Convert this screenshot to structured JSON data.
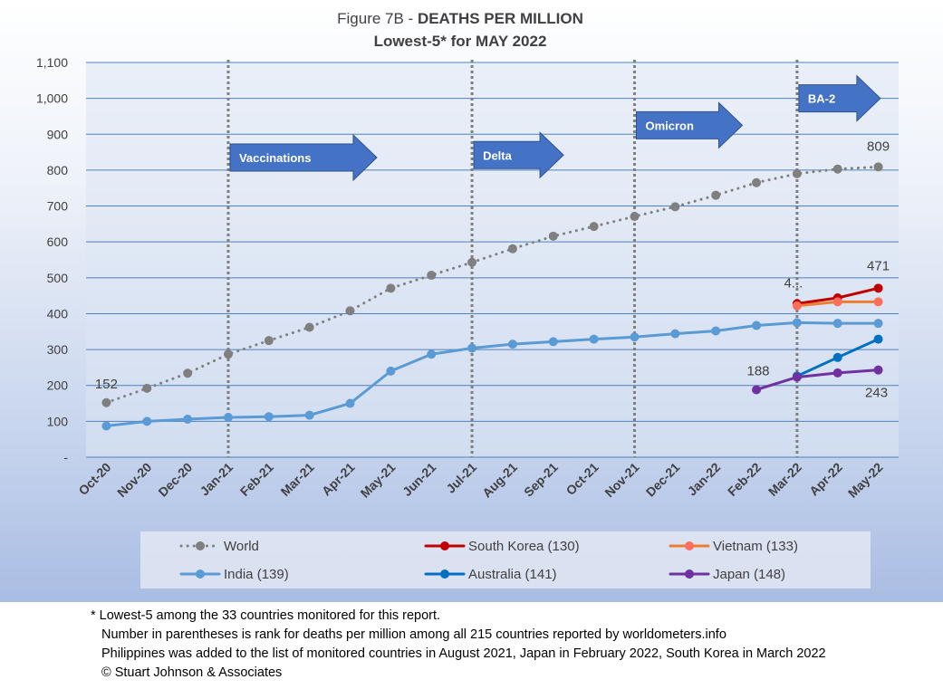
{
  "title": {
    "prefix": "Figure 7B - ",
    "bold": "DEATHS PER MILLION",
    "subtitle": "Lowest-5* for MAY 2022"
  },
  "colors": {
    "World": "#7f7f7f",
    "South Korea (130)": "#c00000",
    "Vietnam (133)": "#ff6e5a",
    "India (139)": "#5b9bd5",
    "Australia (141)": "#0070c0",
    "Japan (148)": "#7030a0",
    "vietnam_line": "#ed7d31",
    "annotation_fill": "#4472c4",
    "gridline": "#4f81bd"
  },
  "chart_data": {
    "type": "line",
    "title": "Figure 7B - DEATHS PER MILLION",
    "subtitle": "Lowest-5* for MAY 2022",
    "xlabel": "",
    "ylabel": "",
    "ylim": [
      0,
      1100
    ],
    "y_ticks": [
      0,
      100,
      200,
      300,
      400,
      500,
      600,
      700,
      800,
      900,
      1000,
      1100
    ],
    "y_tick_labels": [
      "-",
      "100",
      "200",
      "300",
      "400",
      "500",
      "600",
      "700",
      "800",
      "900",
      "1,000",
      "1,100"
    ],
    "grid": true,
    "legend_position": "bottom",
    "categories": [
      "Oct-20",
      "Nov-20",
      "Dec-20",
      "Jan-21",
      "Feb-21",
      "Mar-21",
      "Apr-21",
      "May-21",
      "Jun-21",
      "Jul-21",
      "Aug-21",
      "Sep-21",
      "Oct-21",
      "Nov-21",
      "Dec-21",
      "Jan-22",
      "Feb-22",
      "Mar-22",
      "Apr-22",
      "May-22"
    ],
    "series": [
      {
        "name": "World",
        "style": "dotted",
        "values": [
          152,
          192,
          234,
          287,
          325,
          362,
          408,
          471,
          507,
          543,
          581,
          616,
          643,
          671,
          698,
          730,
          765,
          790,
          803,
          809
        ]
      },
      {
        "name": "South Korea (130)",
        "style": "solid",
        "values": [
          null,
          null,
          null,
          null,
          null,
          null,
          null,
          null,
          null,
          null,
          null,
          null,
          null,
          null,
          null,
          null,
          null,
          428,
          444,
          471
        ]
      },
      {
        "name": "Vietnam (133)",
        "style": "solid",
        "values": [
          null,
          null,
          null,
          null,
          null,
          null,
          null,
          null,
          null,
          null,
          null,
          null,
          null,
          null,
          null,
          null,
          null,
          422,
          433,
          433
        ]
      },
      {
        "name": "India (139)",
        "style": "solid",
        "values": [
          87,
          100,
          106,
          111,
          113,
          117,
          150,
          240,
          287,
          304,
          315,
          322,
          329,
          335,
          344,
          352,
          367,
          375,
          373,
          373
        ]
      },
      {
        "name": "Australia (141)",
        "style": "solid",
        "values": [
          null,
          null,
          null,
          null,
          null,
          null,
          null,
          null,
          null,
          null,
          null,
          null,
          null,
          null,
          null,
          null,
          null,
          226,
          278,
          329
        ]
      },
      {
        "name": "Japan (148)",
        "style": "solid",
        "values": [
          null,
          null,
          null,
          null,
          null,
          null,
          null,
          null,
          null,
          null,
          null,
          null,
          null,
          null,
          null,
          null,
          188,
          223,
          235,
          243
        ]
      }
    ],
    "data_labels": [
      {
        "series": "World",
        "index": 0,
        "text": "152"
      },
      {
        "series": "World",
        "index": 19,
        "text": "809"
      },
      {
        "series": "South Korea (130)",
        "index": 17,
        "text": "4..."
      },
      {
        "series": "South Korea (130)",
        "index": 19,
        "text": "471"
      },
      {
        "series": "Japan (148)",
        "index": 16,
        "text": "188"
      },
      {
        "series": "Japan (148)",
        "index": 19,
        "text": "243"
      }
    ],
    "annotations": [
      {
        "text": "Vaccinations",
        "index": 3,
        "y": 835
      },
      {
        "text": "Delta",
        "index": 9,
        "y": 842
      },
      {
        "text": "Omicron",
        "index": 13,
        "y": 925
      },
      {
        "text": "BA-2",
        "index": 17,
        "y": 1000
      }
    ],
    "vertical_markers": [
      3,
      9,
      13,
      17
    ]
  },
  "footnote": {
    "line1": "* Lowest-5 among the 33 countries monitored for this report.",
    "line2": "Number in parentheses is rank for deaths per million among all 215 countries reported by worldometers.info",
    "line3": "Philippines was added to the list of monitored countries in August 2021, Japan in February 2022, South Korea in March 2022",
    "line4": "© Stuart Johnson & Associates"
  }
}
